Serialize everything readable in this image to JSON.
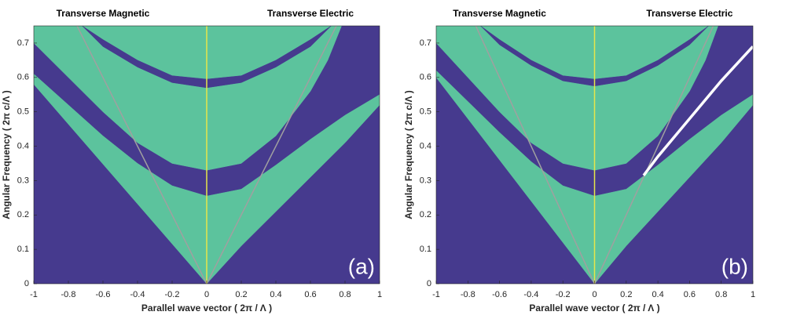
{
  "chart_data": [
    {
      "type": "band",
      "annotations": [
        "Transverse Magnetic",
        "Transverse Electric"
      ],
      "panel_label": "(a)",
      "xlabel": "Parallel wave vector ( 2π / Λ )",
      "ylabel": "Angular Frequency ( 2π c/Λ )",
      "xlim": [
        -1,
        1
      ],
      "ylim": [
        0,
        0.75
      ],
      "xticks": [
        -1,
        -0.8,
        -0.6,
        -0.4,
        -0.2,
        0,
        0.2,
        0.4,
        0.6,
        0.8,
        1
      ],
      "yticks": [
        0,
        0.1,
        0.2,
        0.3,
        0.4,
        0.5,
        0.6,
        0.7
      ],
      "background": "#463a8e",
      "regions": [
        {
          "color": "#5cc39d",
          "x": [
            -1,
            -0.8,
            -0.6,
            -0.4,
            -0.2,
            0,
            0.2,
            0.4,
            0.6,
            0.8,
            1
          ],
          "lower": [
            0.58,
            0.464,
            0.348,
            0.232,
            0.116,
            0,
            0.11,
            0.21,
            0.31,
            0.41,
            0.52
          ],
          "upper": [
            0.61,
            0.52,
            0.43,
            0.35,
            0.285,
            0.255,
            0.275,
            0.345,
            0.42,
            0.49,
            0.55
          ]
        },
        {
          "color": "#5cc39d",
          "x": [
            -1,
            -0.8,
            -0.6,
            -0.4,
            -0.2,
            0,
            0.2,
            0.4,
            0.6,
            0.7,
            0.78
          ],
          "lower": [
            0.7,
            0.6,
            0.5,
            0.41,
            0.35,
            0.33,
            0.35,
            0.43,
            0.56,
            0.65,
            0.75
          ],
          "upper": [
            0.75,
            0.75,
            0.75,
            0.75,
            0.75,
            0.75,
            0.75,
            0.75,
            0.75,
            0.75,
            0.75
          ]
        },
        {
          "color": "#463a8e",
          "x": [
            -0.72,
            -0.6,
            -0.4,
            -0.2,
            0,
            0.2,
            0.4,
            0.6,
            0.72
          ],
          "lower": [
            0.75,
            0.69,
            0.63,
            0.585,
            0.57,
            0.585,
            0.63,
            0.69,
            0.75
          ],
          "upper": [
            0.75,
            0.71,
            0.65,
            0.605,
            0.595,
            0.605,
            0.65,
            0.71,
            0.75
          ]
        }
      ],
      "lines": [
        {
          "color": "#a0a0a0",
          "x": [
            -0.75,
            0,
            0.75
          ],
          "values": [
            0.75,
            0,
            0.75
          ]
        },
        {
          "color": "#e6e64a",
          "x": [
            0,
            0
          ],
          "values": [
            0,
            0.75
          ]
        }
      ]
    },
    {
      "type": "band",
      "annotations": [
        "Transverse Magnetic",
        "Transverse Electric"
      ],
      "panel_label": "(b)",
      "xlabel": "Parallel wave vector ( 2π / Λ )",
      "ylabel": "Angular Frequency ( 2π c/Λ )",
      "xlim": [
        -1,
        1
      ],
      "ylim": [
        0,
        0.75
      ],
      "xticks": [
        -1,
        -0.8,
        -0.6,
        -0.4,
        -0.2,
        0,
        0.2,
        0.4,
        0.6,
        0.8,
        1
      ],
      "yticks": [
        0,
        0.1,
        0.2,
        0.3,
        0.4,
        0.5,
        0.6,
        0.7
      ],
      "background": "#463a8e",
      "regions": [
        {
          "color": "#5cc39d",
          "x": [
            -1,
            -0.8,
            -0.6,
            -0.4,
            -0.2,
            0,
            0.2,
            0.4,
            0.6,
            0.8,
            1
          ],
          "lower": [
            0.6,
            0.48,
            0.36,
            0.24,
            0.12,
            0,
            0.11,
            0.21,
            0.31,
            0.41,
            0.52
          ],
          "upper": [
            0.62,
            0.53,
            0.44,
            0.355,
            0.285,
            0.255,
            0.275,
            0.345,
            0.42,
            0.49,
            0.55
          ]
        },
        {
          "color": "#5cc39d",
          "x": [
            -1,
            -0.8,
            -0.6,
            -0.4,
            -0.2,
            0,
            0.2,
            0.4,
            0.6,
            0.7,
            0.78
          ],
          "lower": [
            0.7,
            0.6,
            0.5,
            0.41,
            0.35,
            0.33,
            0.35,
            0.43,
            0.56,
            0.65,
            0.75
          ],
          "upper": [
            0.75,
            0.75,
            0.75,
            0.75,
            0.75,
            0.75,
            0.75,
            0.75,
            0.75,
            0.75,
            0.75
          ]
        },
        {
          "color": "#463a8e",
          "x": [
            -0.72,
            -0.6,
            -0.4,
            -0.2,
            0,
            0.2,
            0.4,
            0.6,
            0.72
          ],
          "lower": [
            0.75,
            0.695,
            0.635,
            0.59,
            0.575,
            0.59,
            0.635,
            0.695,
            0.75
          ],
          "upper": [
            0.75,
            0.71,
            0.65,
            0.605,
            0.595,
            0.605,
            0.65,
            0.71,
            0.75
          ]
        }
      ],
      "lines": [
        {
          "color": "#a0a0a0",
          "x": [
            -0.75,
            0,
            0.75
          ],
          "values": [
            0.75,
            0,
            0.75
          ]
        },
        {
          "color": "#e6e64a",
          "x": [
            0,
            0
          ],
          "values": [
            0,
            0.75
          ]
        }
      ],
      "highlight": {
        "color": "#ffffff",
        "x": [
          0.31,
          0.4,
          0.6,
          0.8,
          1
        ],
        "values": [
          0.315,
          0.37,
          0.48,
          0.59,
          0.69
        ]
      }
    }
  ]
}
